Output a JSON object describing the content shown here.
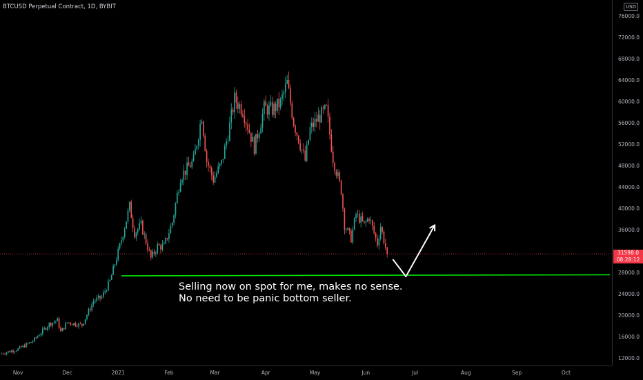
{
  "header": {
    "title": "BTCUSD Perpetual Contract, 1D, BYBIT",
    "currency_badge": "USD"
  },
  "price_axis": {
    "ticks": [
      "76000.0",
      "72000.0",
      "68000.0",
      "64000.0",
      "60000.0",
      "56000.0",
      "52000.0",
      "48000.0",
      "44000.0",
      "40000.0",
      "36000.0",
      "28000.0",
      "24000.0",
      "20000.0",
      "16000.0",
      "12000.0"
    ],
    "last_price": "31598.0",
    "countdown": "08:28:12"
  },
  "time_axis": {
    "labels": [
      "Nov",
      "Dec",
      "2021",
      "Feb",
      "Mar",
      "Apr",
      "May",
      "Jun",
      "Jul",
      "Aug",
      "Sep",
      "Oct"
    ]
  },
  "annotation": {
    "line1": "Selling now on spot for me, makes no sense.",
    "line2": "No need to be panic bottom seller."
  },
  "colors": {
    "up": "#26a69a",
    "down": "#ef5350",
    "support": "#00e600",
    "last_price": "#f23645",
    "projection": "#ffffff"
  },
  "chart_data": {
    "type": "candlestick",
    "title": "BTCUSD Perpetual Contract, 1D, BYBIT",
    "ylim": [
      11000,
      78000
    ],
    "y_ticks": [
      12000,
      16000,
      20000,
      24000,
      28000,
      36000,
      40000,
      44000,
      48000,
      52000,
      56000,
      60000,
      64000,
      68000,
      72000,
      76000
    ],
    "x_labels": [
      "Nov",
      "Dec",
      "2021",
      "Feb",
      "Mar",
      "Apr",
      "May",
      "Jun",
      "Jul",
      "Aug",
      "Sep",
      "Oct"
    ],
    "x_range": [
      "2020-10-21",
      "2021-10-29"
    ],
    "last_price": 31598.0,
    "support_level": 27500,
    "series": [
      {
        "date": "2020-10-21",
        "close": 12900
      },
      {
        "date": "2020-11-01",
        "close": 13800
      },
      {
        "date": "2020-11-10",
        "close": 15300
      },
      {
        "date": "2020-11-20",
        "close": 18500
      },
      {
        "date": "2020-11-25",
        "close": 19200
      },
      {
        "date": "2020-11-27",
        "close": 17000
      },
      {
        "date": "2020-12-01",
        "close": 18800
      },
      {
        "date": "2020-12-10",
        "close": 18300
      },
      {
        "date": "2020-12-17",
        "close": 22800
      },
      {
        "date": "2020-12-22",
        "close": 23500
      },
      {
        "date": "2020-12-27",
        "close": 26500
      },
      {
        "date": "2021-01-02",
        "close": 33000
      },
      {
        "date": "2021-01-08",
        "close": 40500
      },
      {
        "date": "2021-01-11",
        "close": 35500
      },
      {
        "date": "2021-01-15",
        "close": 37000
      },
      {
        "date": "2021-01-21",
        "close": 30800
      },
      {
        "date": "2021-01-25",
        "close": 33000
      },
      {
        "date": "2021-01-29",
        "close": 33000
      },
      {
        "date": "2021-02-03",
        "close": 37500
      },
      {
        "date": "2021-02-08",
        "close": 46000
      },
      {
        "date": "2021-02-12",
        "close": 47500
      },
      {
        "date": "2021-02-16",
        "close": 49000
      },
      {
        "date": "2021-02-21",
        "close": 57500
      },
      {
        "date": "2021-02-24",
        "close": 49000
      },
      {
        "date": "2021-02-28",
        "close": 45500
      },
      {
        "date": "2021-03-05",
        "close": 48500
      },
      {
        "date": "2021-03-09",
        "close": 54000
      },
      {
        "date": "2021-03-13",
        "close": 60500
      },
      {
        "date": "2021-03-18",
        "close": 58500
      },
      {
        "date": "2021-03-25",
        "close": 51500
      },
      {
        "date": "2021-03-31",
        "close": 58800
      },
      {
        "date": "2021-04-05",
        "close": 58500
      },
      {
        "date": "2021-04-10",
        "close": 59800
      },
      {
        "date": "2021-04-14",
        "close": 63500
      },
      {
        "date": "2021-04-18",
        "close": 56200
      },
      {
        "date": "2021-04-25",
        "close": 49000
      },
      {
        "date": "2021-04-28",
        "close": 54900
      },
      {
        "date": "2021-05-03",
        "close": 57000
      },
      {
        "date": "2021-05-08",
        "close": 58500
      },
      {
        "date": "2021-05-12",
        "close": 49500
      },
      {
        "date": "2021-05-17",
        "close": 43500
      },
      {
        "date": "2021-05-19",
        "close": 37000
      },
      {
        "date": "2021-05-23",
        "close": 34500
      },
      {
        "date": "2021-05-26",
        "close": 39000
      },
      {
        "date": "2021-05-31",
        "close": 37000
      },
      {
        "date": "2021-06-03",
        "close": 38500
      },
      {
        "date": "2021-06-08",
        "close": 33500
      },
      {
        "date": "2021-06-10",
        "close": 36800
      },
      {
        "date": "2021-06-14",
        "close": 31598
      }
    ]
  }
}
